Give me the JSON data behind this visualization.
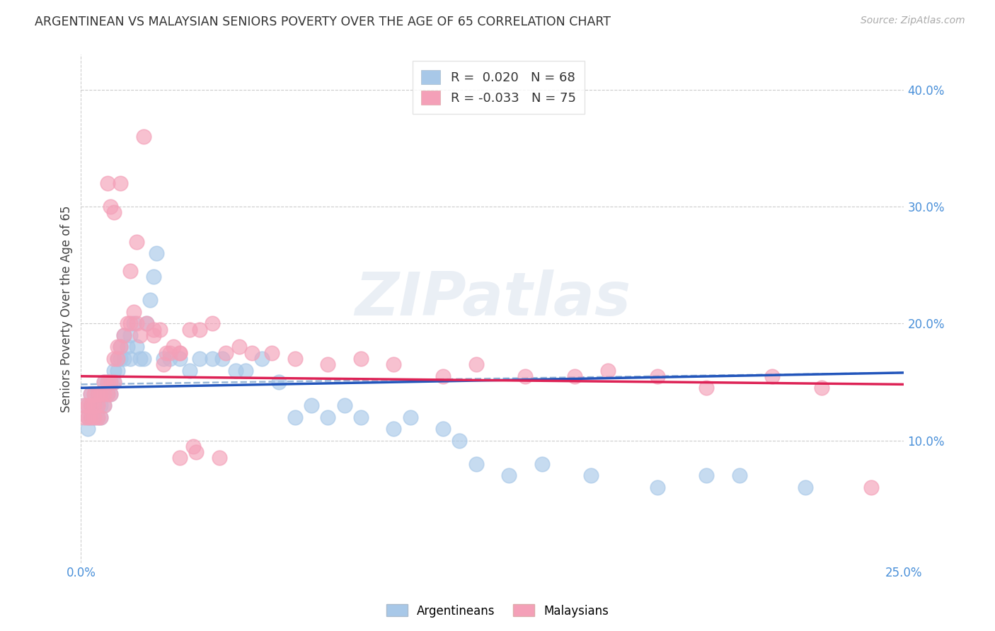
{
  "title": "ARGENTINEAN VS MALAYSIAN SENIORS POVERTY OVER THE AGE OF 65 CORRELATION CHART",
  "source": "Source: ZipAtlas.com",
  "ylabel": "Seniors Poverty Over the Age of 65",
  "xlim": [
    0.0,
    0.25
  ],
  "ylim": [
    -0.005,
    0.43
  ],
  "xticks": [
    0.0,
    0.25
  ],
  "xticklabels": [
    "0.0%",
    "25.0%"
  ],
  "yticks_right": [
    0.1,
    0.2,
    0.3,
    0.4
  ],
  "yticklabels_right": [
    "10.0%",
    "20.0%",
    "30.0%",
    "40.0%"
  ],
  "r_argentinean": 0.02,
  "n_argentinean": 68,
  "r_malaysian": -0.033,
  "n_malaysian": 75,
  "color_argentinean": "#a8c8e8",
  "color_malaysian": "#f4a0b8",
  "color_trend_argentinean": "#2255bb",
  "color_trend_malaysian": "#dd2255",
  "color_ref_line": "#9ab8d8",
  "watermark": "ZIPatlas",
  "background_color": "#ffffff",
  "arg_x": [
    0.001,
    0.002,
    0.002,
    0.003,
    0.003,
    0.003,
    0.004,
    0.004,
    0.004,
    0.005,
    0.005,
    0.005,
    0.006,
    0.006,
    0.007,
    0.007,
    0.007,
    0.008,
    0.008,
    0.009,
    0.009,
    0.01,
    0.01,
    0.011,
    0.011,
    0.012,
    0.012,
    0.013,
    0.013,
    0.014,
    0.015,
    0.015,
    0.016,
    0.017,
    0.018,
    0.019,
    0.02,
    0.021,
    0.022,
    0.023,
    0.025,
    0.027,
    0.03,
    0.033,
    0.036,
    0.04,
    0.043,
    0.047,
    0.05,
    0.055,
    0.06,
    0.065,
    0.07,
    0.075,
    0.08,
    0.085,
    0.095,
    0.1,
    0.11,
    0.115,
    0.12,
    0.13,
    0.14,
    0.155,
    0.175,
    0.19,
    0.2,
    0.22
  ],
  "arg_y": [
    0.13,
    0.11,
    0.12,
    0.13,
    0.12,
    0.14,
    0.12,
    0.13,
    0.14,
    0.12,
    0.13,
    0.14,
    0.12,
    0.13,
    0.13,
    0.14,
    0.15,
    0.14,
    0.15,
    0.14,
    0.15,
    0.15,
    0.16,
    0.16,
    0.17,
    0.17,
    0.18,
    0.17,
    0.19,
    0.18,
    0.17,
    0.19,
    0.2,
    0.18,
    0.17,
    0.17,
    0.2,
    0.22,
    0.24,
    0.26,
    0.17,
    0.17,
    0.17,
    0.16,
    0.17,
    0.17,
    0.17,
    0.16,
    0.16,
    0.17,
    0.15,
    0.12,
    0.13,
    0.12,
    0.13,
    0.12,
    0.11,
    0.12,
    0.11,
    0.1,
    0.08,
    0.07,
    0.08,
    0.07,
    0.06,
    0.07,
    0.07,
    0.06
  ],
  "mal_x": [
    0.001,
    0.001,
    0.002,
    0.002,
    0.003,
    0.003,
    0.003,
    0.004,
    0.004,
    0.004,
    0.005,
    0.005,
    0.005,
    0.006,
    0.006,
    0.007,
    0.007,
    0.007,
    0.008,
    0.008,
    0.009,
    0.009,
    0.01,
    0.01,
    0.011,
    0.011,
    0.012,
    0.013,
    0.014,
    0.015,
    0.016,
    0.017,
    0.018,
    0.02,
    0.022,
    0.024,
    0.026,
    0.028,
    0.03,
    0.033,
    0.036,
    0.04,
    0.044,
    0.048,
    0.052,
    0.058,
    0.065,
    0.075,
    0.085,
    0.095,
    0.11,
    0.12,
    0.135,
    0.15,
    0.16,
    0.175,
    0.19,
    0.21,
    0.225,
    0.24,
    0.008,
    0.009,
    0.01,
    0.012,
    0.015,
    0.017,
    0.019,
    0.022,
    0.025,
    0.027,
    0.03,
    0.034,
    0.03,
    0.035,
    0.042
  ],
  "mal_y": [
    0.12,
    0.13,
    0.12,
    0.13,
    0.12,
    0.13,
    0.14,
    0.12,
    0.13,
    0.14,
    0.12,
    0.13,
    0.14,
    0.12,
    0.14,
    0.13,
    0.14,
    0.15,
    0.14,
    0.15,
    0.14,
    0.15,
    0.15,
    0.17,
    0.17,
    0.18,
    0.18,
    0.19,
    0.2,
    0.2,
    0.21,
    0.2,
    0.19,
    0.2,
    0.195,
    0.195,
    0.175,
    0.18,
    0.175,
    0.195,
    0.195,
    0.2,
    0.175,
    0.18,
    0.175,
    0.175,
    0.17,
    0.165,
    0.17,
    0.165,
    0.155,
    0.165,
    0.155,
    0.155,
    0.16,
    0.155,
    0.145,
    0.155,
    0.145,
    0.06,
    0.32,
    0.3,
    0.295,
    0.32,
    0.245,
    0.27,
    0.36,
    0.19,
    0.165,
    0.175,
    0.175,
    0.095,
    0.085,
    0.09,
    0.085
  ]
}
